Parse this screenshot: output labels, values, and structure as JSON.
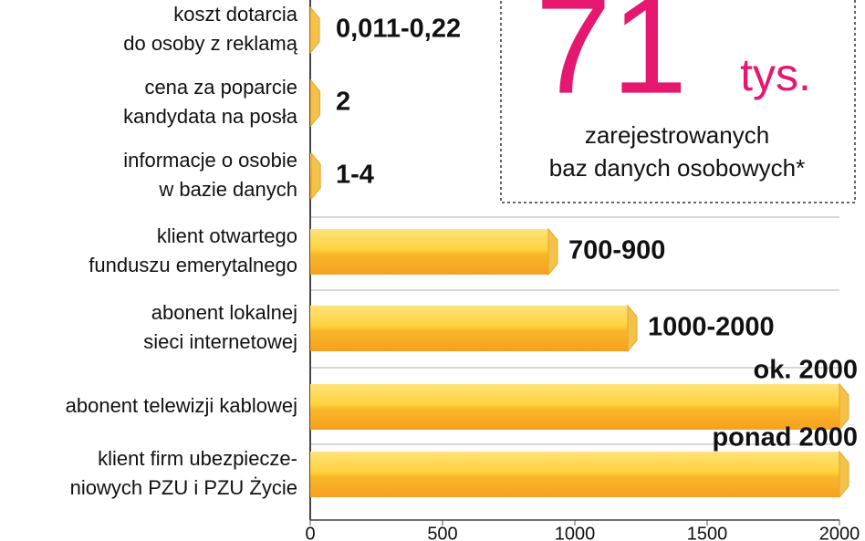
{
  "chart_data": {
    "type": "bar",
    "orientation": "horizontal",
    "categories": [
      "koszt dotarcia\ndo osoby z reklamą",
      "cena za poparcie\nkandydata na posła",
      "informacje o osobie\nw bazie danych",
      "klient otwartego\nfunduszu emerytalnego",
      "abonent lokalnej\nsieci internetowej",
      "abonent telewizji kablowej",
      "klient firm ubezpiecze-\nniowych PZU i PZU Życie"
    ],
    "values": [
      0.22,
      2,
      4,
      900,
      1200,
      2000,
      2000
    ],
    "value_labels": [
      "0,011-0,22",
      "2",
      "1-4",
      "700-900",
      "1000-2000",
      "ok. 2000",
      "ponad 2000"
    ],
    "color": "#f7a823",
    "xlim": [
      0,
      2000
    ],
    "xticks": [
      0,
      500,
      1000,
      1500,
      2000
    ],
    "grid": true,
    "annotation": {
      "number": "71",
      "unit": "tys.",
      "text": "zarejestrowanych\nbaz danych osobowych*"
    }
  }
}
